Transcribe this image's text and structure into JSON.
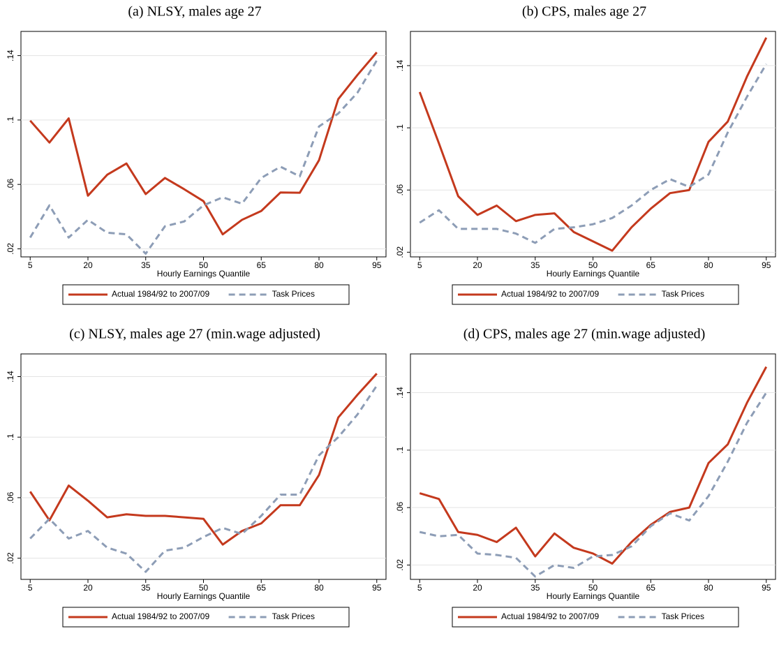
{
  "chart_data": [
    {
      "type": "line",
      "title": "(a) NLSY, males age 27",
      "x_label": "Hourly Earnings Quantile",
      "x": [
        5,
        10,
        15,
        20,
        25,
        30,
        35,
        40,
        45,
        50,
        55,
        60,
        65,
        70,
        75,
        80,
        85,
        90,
        95
      ],
      "xlim": [
        2.6,
        97.4
      ],
      "xticks": [
        5,
        20,
        35,
        50,
        65,
        80,
        95
      ],
      "ylim": [
        0.015,
        0.155
      ],
      "yticks": [
        {
          "value": 0.02,
          "label": ".02"
        },
        {
          "value": 0.06,
          "label": ".06"
        },
        {
          "value": 0.1,
          "label": ".1"
        },
        {
          "value": 0.14,
          "label": ".14"
        }
      ],
      "grid": true,
      "legend": "bottom",
      "series": [
        {
          "name": "Actual 1984/92 to 2007/09",
          "color": "#c4391d",
          "style": "solid",
          "values": [
            0.0996,
            0.086,
            0.101,
            0.053,
            0.066,
            0.073,
            0.054,
            0.064,
            0.057,
            0.0496,
            0.029,
            0.038,
            0.0435,
            0.055,
            0.0548,
            0.075,
            0.113,
            0.128,
            0.142
          ]
        },
        {
          "name": "Task Prices",
          "color": "#8d9db6",
          "style": "dashed",
          "values": [
            0.027,
            0.047,
            0.027,
            0.038,
            0.03,
            0.029,
            0.017,
            0.034,
            0.037,
            0.047,
            0.052,
            0.048,
            0.064,
            0.071,
            0.065,
            0.096,
            0.104,
            0.117,
            0.137
          ]
        }
      ]
    },
    {
      "type": "line",
      "title": "(b) CPS, males age 27",
      "x_label": "Hourly Earnings Quantile",
      "x": [
        5,
        10,
        15,
        20,
        25,
        30,
        35,
        40,
        45,
        50,
        55,
        60,
        65,
        70,
        75,
        80,
        85,
        90,
        95
      ],
      "xlim": [
        2.6,
        97.4
      ],
      "xticks": [
        5,
        20,
        35,
        50,
        65,
        80,
        95
      ],
      "ylim": [
        0.017,
        0.162
      ],
      "yticks": [
        {
          "value": 0.02,
          "label": ".02"
        },
        {
          "value": 0.06,
          "label": ".06"
        },
        {
          "value": 0.1,
          "label": ".1"
        },
        {
          "value": 0.14,
          "label": ".14"
        }
      ],
      "grid": true,
      "legend": "bottom",
      "series": [
        {
          "name": "Actual 1984/92 to 2007/09",
          "color": "#c4391d",
          "style": "solid",
          "values": [
            0.123,
            0.09,
            0.056,
            0.044,
            0.05,
            0.04,
            0.044,
            0.045,
            0.033,
            0.027,
            0.021,
            0.036,
            0.048,
            0.058,
            0.06,
            0.091,
            0.104,
            0.133,
            0.158
          ]
        },
        {
          "name": "Task Prices",
          "color": "#8d9db6",
          "style": "dashed",
          "values": [
            0.039,
            0.047,
            0.035,
            0.035,
            0.035,
            0.032,
            0.026,
            0.035,
            0.036,
            0.038,
            0.042,
            0.05,
            0.06,
            0.067,
            0.062,
            0.07,
            0.097,
            0.12,
            0.141
          ]
        }
      ]
    },
    {
      "type": "line",
      "title": "(c) NLSY, males age 27 (min.wage adjusted)",
      "x_label": "Hourly Earnings Quantile",
      "x": [
        5,
        10,
        15,
        20,
        25,
        30,
        35,
        40,
        45,
        50,
        55,
        60,
        65,
        70,
        75,
        80,
        85,
        90,
        95
      ],
      "xlim": [
        2.6,
        97.4
      ],
      "xticks": [
        5,
        20,
        35,
        50,
        65,
        80,
        95
      ],
      "ylim": [
        0.006,
        0.155
      ],
      "yticks": [
        {
          "value": 0.02,
          "label": ".02"
        },
        {
          "value": 0.06,
          "label": ".06"
        },
        {
          "value": 0.1,
          "label": ".1"
        },
        {
          "value": 0.14,
          "label": ".14"
        }
      ],
      "grid": true,
      "legend": "bottom",
      "series": [
        {
          "name": "Actual 1984/92 to 2007/09",
          "color": "#c4391d",
          "style": "solid",
          "values": [
            0.064,
            0.045,
            0.068,
            0.058,
            0.047,
            0.049,
            0.048,
            0.048,
            0.047,
            0.046,
            0.029,
            0.038,
            0.043,
            0.055,
            0.055,
            0.075,
            0.113,
            0.128,
            0.142
          ]
        },
        {
          "name": "Task Prices",
          "color": "#8d9db6",
          "style": "dashed",
          "values": [
            0.033,
            0.046,
            0.033,
            0.038,
            0.027,
            0.023,
            0.011,
            0.025,
            0.027,
            0.034,
            0.04,
            0.036,
            0.048,
            0.062,
            0.062,
            0.088,
            0.1,
            0.115,
            0.134
          ]
        }
      ]
    },
    {
      "type": "line",
      "title": "(d) CPS, males age 27 (min.wage adjusted)",
      "x_label": "Hourly Earnings Quantile",
      "x": [
        5,
        10,
        15,
        20,
        25,
        30,
        35,
        40,
        45,
        50,
        55,
        60,
        65,
        70,
        75,
        80,
        85,
        90,
        95
      ],
      "xlim": [
        2.6,
        97.4
      ],
      "xticks": [
        5,
        20,
        35,
        50,
        65,
        80,
        95
      ],
      "ylim": [
        0.01,
        0.167
      ],
      "yticks": [
        {
          "value": 0.02,
          "label": ".02"
        },
        {
          "value": 0.06,
          "label": ".06"
        },
        {
          "value": 0.1,
          "label": ".1"
        },
        {
          "value": 0.14,
          "label": ".14"
        }
      ],
      "grid": true,
      "legend": "bottom",
      "series": [
        {
          "name": "Actual 1984/92 to 2007/09",
          "color": "#c4391d",
          "style": "solid",
          "values": [
            0.07,
            0.066,
            0.043,
            0.041,
            0.036,
            0.046,
            0.026,
            0.042,
            0.032,
            0.028,
            0.021,
            0.036,
            0.048,
            0.057,
            0.06,
            0.091,
            0.104,
            0.133,
            0.158
          ]
        },
        {
          "name": "Task Prices",
          "color": "#8d9db6",
          "style": "dashed",
          "values": [
            0.043,
            0.04,
            0.041,
            0.028,
            0.027,
            0.025,
            0.012,
            0.02,
            0.018,
            0.026,
            0.027,
            0.033,
            0.047,
            0.056,
            0.051,
            0.068,
            0.092,
            0.119,
            0.14
          ]
        }
      ]
    }
  ]
}
